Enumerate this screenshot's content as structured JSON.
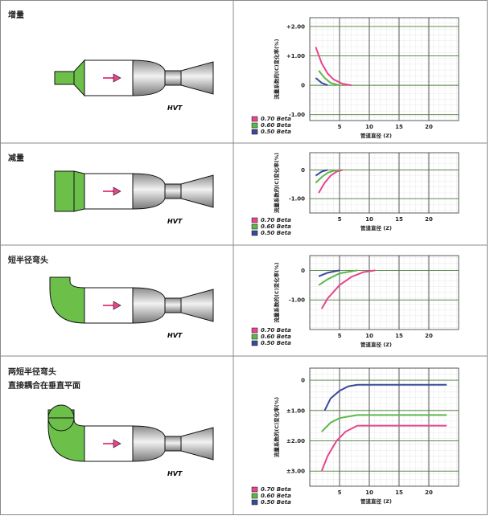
{
  "rows": [
    {
      "title": [
        "增量"
      ],
      "diagram_label": "HVT",
      "chart": {
        "type": "line",
        "ylabel": "流量系数的(C)变化率(%)",
        "xlabel": "管道直径 (Z)",
        "xlim": [
          0,
          25
        ],
        "ylim": [
          -1.2,
          2.3
        ],
        "xticks": [
          5,
          10,
          15,
          20
        ],
        "yticks": [
          {
            "value": 2,
            "label": "+2.00"
          },
          {
            "value": 1,
            "label": "+1.00"
          },
          0,
          {
            "value": -1,
            "label": "-1.00"
          }
        ],
        "series": [
          {
            "name": "0.70 Beta",
            "color": "#e8458b",
            "x": [
              1,
              2,
              3,
              4,
              5.5,
              7
            ],
            "values": [
              1.3,
              0.75,
              0.4,
              0.2,
              0.05,
              0
            ]
          },
          {
            "name": "0.60 Beta",
            "color": "#5cb84a",
            "x": [
              1.5,
              2.5,
              3.5,
              5
            ],
            "values": [
              0.5,
              0.25,
              0.08,
              0
            ]
          },
          {
            "name": "0.50 Beta",
            "color": "#3a4a9a",
            "x": [
              1,
              2,
              3
            ],
            "values": [
              0.25,
              0.08,
              0
            ]
          }
        ]
      }
    },
    {
      "title": [
        "减量"
      ],
      "diagram_label": "HVT",
      "chart": {
        "type": "line",
        "ylabel": "流量系数的(C)变化率(%)",
        "xlabel": "管道直径 (Z)",
        "xlim": [
          0,
          25
        ],
        "ylim": [
          -1.5,
          0.6
        ],
        "xticks": [
          5,
          10,
          15,
          20
        ],
        "yticks": [
          0,
          {
            "value": -1,
            "label": "-1.00"
          }
        ],
        "series": [
          {
            "name": "0.70 Beta",
            "color": "#e8458b",
            "x": [
              1.5,
              2.5,
              3.5,
              4.5,
              5.5
            ],
            "values": [
              -0.8,
              -0.45,
              -0.2,
              -0.06,
              0
            ]
          },
          {
            "name": "0.60 Beta",
            "color": "#5cb84a",
            "x": [
              1,
              2,
              3,
              4,
              5
            ],
            "values": [
              -0.45,
              -0.25,
              -0.1,
              -0.03,
              0
            ]
          },
          {
            "name": "0.50 Beta",
            "color": "#3a4a9a",
            "x": [
              1,
              2,
              3
            ],
            "values": [
              -0.2,
              -0.06,
              0
            ]
          }
        ]
      }
    },
    {
      "title": [
        "短半径弯头"
      ],
      "diagram_label": "HVT",
      "chart": {
        "type": "line",
        "ylabel": "流量系数的(C)变化率(%)",
        "xlabel": "管道直径 (Z)",
        "xlim": [
          0,
          25
        ],
        "ylim": [
          -2.0,
          0.5
        ],
        "xticks": [
          5,
          10,
          15,
          20
        ],
        "yticks": [
          0,
          {
            "value": -1,
            "label": "-1.00"
          }
        ],
        "series": [
          {
            "name": "0.70 Beta",
            "color": "#e8458b",
            "x": [
              2,
              3,
              5,
              7,
              9,
              11
            ],
            "values": [
              -1.3,
              -0.95,
              -0.5,
              -0.22,
              -0.06,
              0
            ]
          },
          {
            "name": "0.60 Beta",
            "color": "#5cb84a",
            "x": [
              1.5,
              3,
              5,
              8
            ],
            "values": [
              -0.5,
              -0.3,
              -0.1,
              0
            ]
          },
          {
            "name": "0.50 Beta",
            "color": "#3a4a9a",
            "x": [
              1.5,
              3,
              5
            ],
            "values": [
              -0.2,
              -0.08,
              0
            ]
          }
        ]
      }
    },
    {
      "title": [
        "两短半径弯头",
        "直接耦合在垂直平面"
      ],
      "diagram_label": "HVT",
      "chart": {
        "type": "line",
        "ylabel": "流量系数的(C)变化率(%)",
        "xlabel": "管道直径 (Z)",
        "xlim": [
          0,
          25
        ],
        "ylim": [
          3.5,
          -0.4
        ],
        "xticks": [
          5,
          10,
          15,
          20
        ],
        "yticks": [
          0,
          {
            "value": 1,
            "label": "±1.00"
          },
          {
            "value": 2,
            "label": "±2.00"
          },
          {
            "value": 3,
            "label": "±3.00"
          }
        ],
        "series": [
          {
            "name": "0.70 Beta",
            "color": "#e8458b",
            "x": [
              2,
              3,
              4.5,
              6,
              8,
              23
            ],
            "values": [
              3.0,
              2.5,
              2.0,
              1.7,
              1.5,
              1.5
            ]
          },
          {
            "name": "0.60 Beta",
            "color": "#5cb84a",
            "x": [
              2,
              3.5,
              5,
              8,
              23
            ],
            "values": [
              1.7,
              1.4,
              1.25,
              1.15,
              1.15
            ]
          },
          {
            "name": "0.50 Beta",
            "color": "#3a4a9a",
            "x": [
              2.5,
              3.5,
              5,
              6.5,
              8,
              23
            ],
            "values": [
              1.0,
              0.6,
              0.35,
              0.2,
              0.15,
              0.15
            ]
          }
        ]
      }
    }
  ]
}
